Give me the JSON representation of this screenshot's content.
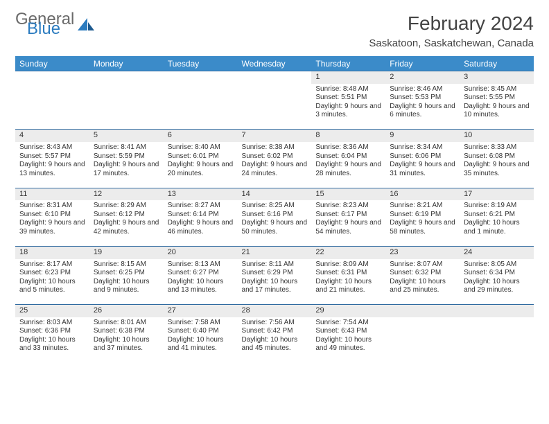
{
  "logo": {
    "general": "General",
    "blue": "Blue"
  },
  "title": "February 2024",
  "location": "Saskatoon, Saskatchewan, Canada",
  "colors": {
    "header_bg": "#3b8bc9",
    "border": "#2f6aa0",
    "daynum_bg": "#ececec",
    "logo_gray": "#6a6a6a",
    "logo_blue": "#2b7bbf"
  },
  "weekdays": [
    "Sunday",
    "Monday",
    "Tuesday",
    "Wednesday",
    "Thursday",
    "Friday",
    "Saturday"
  ],
  "weeks": [
    [
      null,
      null,
      null,
      null,
      {
        "n": "1",
        "sr": "Sunrise: 8:48 AM",
        "ss": "Sunset: 5:51 PM",
        "dl": "Daylight: 9 hours and 3 minutes."
      },
      {
        "n": "2",
        "sr": "Sunrise: 8:46 AM",
        "ss": "Sunset: 5:53 PM",
        "dl": "Daylight: 9 hours and 6 minutes."
      },
      {
        "n": "3",
        "sr": "Sunrise: 8:45 AM",
        "ss": "Sunset: 5:55 PM",
        "dl": "Daylight: 9 hours and 10 minutes."
      }
    ],
    [
      {
        "n": "4",
        "sr": "Sunrise: 8:43 AM",
        "ss": "Sunset: 5:57 PM",
        "dl": "Daylight: 9 hours and 13 minutes."
      },
      {
        "n": "5",
        "sr": "Sunrise: 8:41 AM",
        "ss": "Sunset: 5:59 PM",
        "dl": "Daylight: 9 hours and 17 minutes."
      },
      {
        "n": "6",
        "sr": "Sunrise: 8:40 AM",
        "ss": "Sunset: 6:01 PM",
        "dl": "Daylight: 9 hours and 20 minutes."
      },
      {
        "n": "7",
        "sr": "Sunrise: 8:38 AM",
        "ss": "Sunset: 6:02 PM",
        "dl": "Daylight: 9 hours and 24 minutes."
      },
      {
        "n": "8",
        "sr": "Sunrise: 8:36 AM",
        "ss": "Sunset: 6:04 PM",
        "dl": "Daylight: 9 hours and 28 minutes."
      },
      {
        "n": "9",
        "sr": "Sunrise: 8:34 AM",
        "ss": "Sunset: 6:06 PM",
        "dl": "Daylight: 9 hours and 31 minutes."
      },
      {
        "n": "10",
        "sr": "Sunrise: 8:33 AM",
        "ss": "Sunset: 6:08 PM",
        "dl": "Daylight: 9 hours and 35 minutes."
      }
    ],
    [
      {
        "n": "11",
        "sr": "Sunrise: 8:31 AM",
        "ss": "Sunset: 6:10 PM",
        "dl": "Daylight: 9 hours and 39 minutes."
      },
      {
        "n": "12",
        "sr": "Sunrise: 8:29 AM",
        "ss": "Sunset: 6:12 PM",
        "dl": "Daylight: 9 hours and 42 minutes."
      },
      {
        "n": "13",
        "sr": "Sunrise: 8:27 AM",
        "ss": "Sunset: 6:14 PM",
        "dl": "Daylight: 9 hours and 46 minutes."
      },
      {
        "n": "14",
        "sr": "Sunrise: 8:25 AM",
        "ss": "Sunset: 6:16 PM",
        "dl": "Daylight: 9 hours and 50 minutes."
      },
      {
        "n": "15",
        "sr": "Sunrise: 8:23 AM",
        "ss": "Sunset: 6:17 PM",
        "dl": "Daylight: 9 hours and 54 minutes."
      },
      {
        "n": "16",
        "sr": "Sunrise: 8:21 AM",
        "ss": "Sunset: 6:19 PM",
        "dl": "Daylight: 9 hours and 58 minutes."
      },
      {
        "n": "17",
        "sr": "Sunrise: 8:19 AM",
        "ss": "Sunset: 6:21 PM",
        "dl": "Daylight: 10 hours and 1 minute."
      }
    ],
    [
      {
        "n": "18",
        "sr": "Sunrise: 8:17 AM",
        "ss": "Sunset: 6:23 PM",
        "dl": "Daylight: 10 hours and 5 minutes."
      },
      {
        "n": "19",
        "sr": "Sunrise: 8:15 AM",
        "ss": "Sunset: 6:25 PM",
        "dl": "Daylight: 10 hours and 9 minutes."
      },
      {
        "n": "20",
        "sr": "Sunrise: 8:13 AM",
        "ss": "Sunset: 6:27 PM",
        "dl": "Daylight: 10 hours and 13 minutes."
      },
      {
        "n": "21",
        "sr": "Sunrise: 8:11 AM",
        "ss": "Sunset: 6:29 PM",
        "dl": "Daylight: 10 hours and 17 minutes."
      },
      {
        "n": "22",
        "sr": "Sunrise: 8:09 AM",
        "ss": "Sunset: 6:31 PM",
        "dl": "Daylight: 10 hours and 21 minutes."
      },
      {
        "n": "23",
        "sr": "Sunrise: 8:07 AM",
        "ss": "Sunset: 6:32 PM",
        "dl": "Daylight: 10 hours and 25 minutes."
      },
      {
        "n": "24",
        "sr": "Sunrise: 8:05 AM",
        "ss": "Sunset: 6:34 PM",
        "dl": "Daylight: 10 hours and 29 minutes."
      }
    ],
    [
      {
        "n": "25",
        "sr": "Sunrise: 8:03 AM",
        "ss": "Sunset: 6:36 PM",
        "dl": "Daylight: 10 hours and 33 minutes."
      },
      {
        "n": "26",
        "sr": "Sunrise: 8:01 AM",
        "ss": "Sunset: 6:38 PM",
        "dl": "Daylight: 10 hours and 37 minutes."
      },
      {
        "n": "27",
        "sr": "Sunrise: 7:58 AM",
        "ss": "Sunset: 6:40 PM",
        "dl": "Daylight: 10 hours and 41 minutes."
      },
      {
        "n": "28",
        "sr": "Sunrise: 7:56 AM",
        "ss": "Sunset: 6:42 PM",
        "dl": "Daylight: 10 hours and 45 minutes."
      },
      {
        "n": "29",
        "sr": "Sunrise: 7:54 AM",
        "ss": "Sunset: 6:43 PM",
        "dl": "Daylight: 10 hours and 49 minutes."
      },
      null,
      null
    ]
  ]
}
